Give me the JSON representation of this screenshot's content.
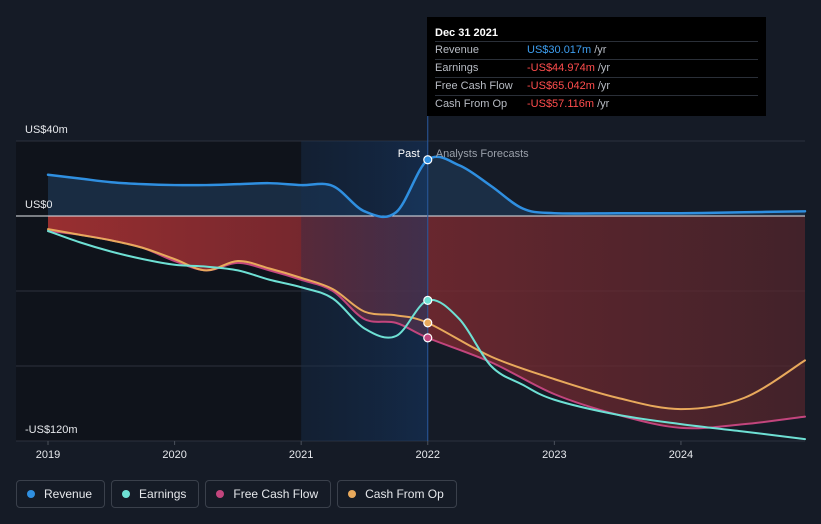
{
  "chart_data": {
    "type": "line",
    "x_ticks": [
      "2019",
      "2020",
      "2021",
      "2022",
      "2023",
      "2024"
    ],
    "y_ticks": [
      {
        "value": 40,
        "label": "US$40m"
      },
      {
        "value": 0,
        "label": "US$0"
      },
      {
        "value": -120,
        "label": "-US$120m"
      }
    ],
    "xlim": [
      2019.0,
      2024.98
    ],
    "ylim": [
      -120,
      40
    ],
    "grid": true,
    "region_labels": {
      "past": "Past",
      "forecast": "Analysts Forecasts"
    },
    "past_end": 2022.0,
    "highlight_start": 2021.0,
    "series": [
      {
        "name": "Revenue",
        "color": "#2f8fe0",
        "fill": "#1f3a55",
        "points": [
          [
            2019.0,
            22
          ],
          [
            2019.25,
            20
          ],
          [
            2019.5,
            18
          ],
          [
            2019.75,
            17
          ],
          [
            2020.0,
            16.5
          ],
          [
            2020.25,
            16.5
          ],
          [
            2020.5,
            17
          ],
          [
            2020.75,
            17.5
          ],
          [
            2021.0,
            16.5
          ],
          [
            2021.25,
            16
          ],
          [
            2021.5,
            2.5
          ],
          [
            2021.75,
            2
          ],
          [
            2022.0,
            30
          ],
          [
            2022.25,
            27
          ],
          [
            2022.5,
            16
          ],
          [
            2022.75,
            4
          ],
          [
            2023.0,
            1.5
          ],
          [
            2023.5,
            1.5
          ],
          [
            2024.0,
            1.5
          ],
          [
            2024.5,
            2
          ],
          [
            2024.98,
            2.5
          ]
        ]
      },
      {
        "name": "Earnings",
        "color": "#6ee0d4",
        "points": [
          [
            2019.0,
            -8
          ],
          [
            2019.25,
            -14
          ],
          [
            2019.5,
            -19
          ],
          [
            2019.75,
            -23
          ],
          [
            2020.0,
            -26
          ],
          [
            2020.25,
            -27
          ],
          [
            2020.5,
            -29
          ],
          [
            2020.75,
            -34
          ],
          [
            2021.0,
            -38
          ],
          [
            2021.25,
            -44
          ],
          [
            2021.5,
            -60
          ],
          [
            2021.75,
            -64
          ],
          [
            2022.0,
            -45
          ],
          [
            2022.25,
            -55
          ],
          [
            2022.5,
            -80
          ],
          [
            2022.75,
            -90
          ],
          [
            2023.0,
            -98
          ],
          [
            2023.5,
            -106
          ],
          [
            2024.0,
            -111
          ],
          [
            2024.5,
            -115
          ],
          [
            2024.98,
            -119
          ]
        ]
      },
      {
        "name": "Free Cash Flow",
        "color": "#c2457d",
        "points": [
          [
            2019.0,
            -8
          ],
          [
            2019.25,
            -10
          ],
          [
            2019.5,
            -13
          ],
          [
            2019.75,
            -17
          ],
          [
            2020.0,
            -24
          ],
          [
            2020.25,
            -29
          ],
          [
            2020.5,
            -25
          ],
          [
            2020.75,
            -29
          ],
          [
            2021.0,
            -34
          ],
          [
            2021.25,
            -40
          ],
          [
            2021.5,
            -55
          ],
          [
            2021.75,
            -57
          ],
          [
            2022.0,
            -65
          ],
          [
            2022.5,
            -78
          ],
          [
            2023.0,
            -95
          ],
          [
            2023.5,
            -106
          ],
          [
            2024.0,
            -113
          ],
          [
            2024.5,
            -111
          ],
          [
            2024.98,
            -107
          ]
        ]
      },
      {
        "name": "Cash From Op",
        "color": "#e8a95c",
        "points": [
          [
            2019.0,
            -7
          ],
          [
            2019.25,
            -10
          ],
          [
            2019.5,
            -13
          ],
          [
            2019.75,
            -17
          ],
          [
            2020.0,
            -23
          ],
          [
            2020.25,
            -29
          ],
          [
            2020.5,
            -24
          ],
          [
            2020.75,
            -28
          ],
          [
            2021.0,
            -33
          ],
          [
            2021.25,
            -39
          ],
          [
            2021.5,
            -51
          ],
          [
            2021.75,
            -53
          ],
          [
            2022.0,
            -57
          ],
          [
            2022.5,
            -75
          ],
          [
            2023.0,
            -87
          ],
          [
            2023.5,
            -97
          ],
          [
            2024.0,
            -103
          ],
          [
            2024.5,
            -97
          ],
          [
            2024.98,
            -77
          ]
        ]
      }
    ]
  },
  "tooltip": {
    "date": "Dec 31 2021",
    "rows": [
      {
        "name": "Revenue",
        "value": "US$30.017m",
        "unit": "/yr",
        "color": "#3d9ef0"
      },
      {
        "name": "Earnings",
        "value": "-US$44.974m",
        "unit": "/yr",
        "color": "#ff4d4d"
      },
      {
        "name": "Free Cash Flow",
        "value": "-US$65.042m",
        "unit": "/yr",
        "color": "#ff4d4d"
      },
      {
        "name": "Cash From Op",
        "value": "-US$57.116m",
        "unit": "/yr",
        "color": "#ff4d4d"
      }
    ]
  },
  "legend": [
    {
      "label": "Revenue",
      "color": "#2f8fe0"
    },
    {
      "label": "Earnings",
      "color": "#6ee0d4"
    },
    {
      "label": "Free Cash Flow",
      "color": "#c2457d"
    },
    {
      "label": "Cash From Op",
      "color": "#e8a95c"
    }
  ]
}
